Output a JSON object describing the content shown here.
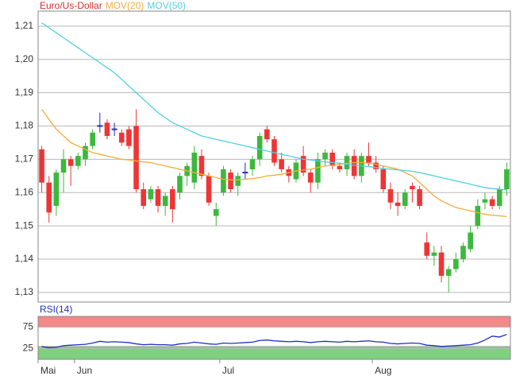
{
  "chart_data": [
    {
      "type": "candlestick",
      "categories": [
        "Mai",
        null,
        null,
        null,
        null,
        "Jun",
        null,
        null,
        null,
        null,
        null,
        null,
        null,
        null,
        null,
        null,
        null,
        null,
        null,
        null,
        null,
        null,
        null,
        null,
        null,
        "Jul",
        null,
        null,
        null,
        null,
        null,
        null,
        null,
        null,
        null,
        null,
        null,
        null,
        null,
        null,
        null,
        null,
        null,
        null,
        null,
        null,
        "Aug",
        null,
        null,
        null,
        null,
        null,
        null,
        null,
        null,
        null,
        null,
        null,
        null,
        null,
        null,
        null,
        null,
        null,
        null
      ],
      "series": [
        {
          "name": "Euro/Us-Dollar",
          "color": "#d03030",
          "up_color": "#3cb83c",
          "down_color": "#ee3535",
          "doji_color": "#2030c0",
          "open": [
            1.173,
            1.163,
            1.156,
            1.166,
            1.17,
            1.168,
            1.17,
            1.174,
            1.18,
            1.181,
            1.179,
            1.178,
            1.179,
            1.18,
            1.161,
            1.158,
            1.161,
            1.156,
            1.161,
            1.16,
            1.165,
            1.163,
            1.171,
            1.165,
            1.153,
            1.16,
            1.166,
            1.162,
            1.166,
            1.167,
            1.17,
            1.179,
            1.176,
            1.17,
            1.167,
            1.164,
            1.171,
            1.166,
            1.163,
            1.17,
            1.172,
            1.168,
            1.167,
            1.171,
            1.165,
            1.171,
            1.169,
            1.167,
            1.161,
            1.157,
            1.156,
            1.162,
            1.161,
            1.145,
            1.141,
            1.142,
            1.135,
            1.137,
            1.14,
            1.143,
            1.15,
            1.157,
            1.158,
            1.156,
            1.161
          ],
          "high": [
            1.174,
            1.165,
            1.167,
            1.173,
            1.171,
            1.172,
            1.175,
            1.179,
            1.184,
            1.182,
            1.181,
            1.179,
            1.18,
            1.185,
            1.163,
            1.162,
            1.162,
            1.16,
            1.162,
            1.166,
            1.169,
            1.174,
            1.173,
            1.166,
            1.157,
            1.168,
            1.167,
            1.166,
            1.169,
            1.171,
            1.178,
            1.18,
            1.177,
            1.172,
            1.168,
            1.17,
            1.174,
            1.167,
            1.172,
            1.173,
            1.173,
            1.169,
            1.172,
            1.173,
            1.172,
            1.175,
            1.171,
            1.168,
            1.163,
            1.16,
            1.161,
            1.163,
            1.162,
            1.148,
            1.144,
            1.144,
            1.138,
            1.142,
            1.145,
            1.15,
            1.158,
            1.16,
            1.159,
            1.162,
            1.169
          ],
          "low": [
            1.16,
            1.151,
            1.153,
            1.16,
            1.162,
            1.167,
            1.168,
            1.173,
            1.178,
            1.176,
            1.177,
            1.174,
            1.173,
            1.16,
            1.155,
            1.157,
            1.154,
            1.153,
            1.151,
            1.158,
            1.162,
            1.161,
            1.164,
            1.156,
            1.15,
            1.159,
            1.16,
            1.159,
            1.164,
            1.165,
            1.168,
            1.175,
            1.168,
            1.166,
            1.163,
            1.163,
            1.165,
            1.16,
            1.161,
            1.168,
            1.167,
            1.166,
            1.165,
            1.164,
            1.163,
            1.168,
            1.166,
            1.16,
            1.155,
            1.153,
            1.155,
            1.157,
            1.155,
            1.14,
            1.138,
            1.133,
            1.13,
            1.136,
            1.139,
            1.142,
            1.149,
            1.155,
            1.155,
            1.155,
            1.159
          ],
          "close": [
            1.163,
            1.154,
            1.166,
            1.17,
            1.168,
            1.171,
            1.174,
            1.178,
            1.18,
            1.177,
            1.179,
            1.175,
            1.174,
            1.161,
            1.156,
            1.161,
            1.156,
            1.159,
            1.155,
            1.165,
            1.168,
            1.172,
            1.165,
            1.157,
            1.155,
            1.167,
            1.161,
            1.165,
            1.166,
            1.17,
            1.177,
            1.176,
            1.169,
            1.167,
            1.165,
            1.169,
            1.166,
            1.163,
            1.17,
            1.172,
            1.168,
            1.167,
            1.171,
            1.165,
            1.171,
            1.169,
            1.167,
            1.161,
            1.157,
            1.156,
            1.16,
            1.161,
            1.156,
            1.141,
            1.142,
            1.135,
            1.137,
            1.14,
            1.144,
            1.148,
            1.156,
            1.158,
            1.156,
            1.161,
            1.167
          ]
        },
        {
          "name": "MOV(20)",
          "color": "#f5ac3a",
          "values": [
            1.185,
            1.182,
            1.179,
            1.177,
            1.175,
            1.174,
            1.173,
            1.172,
            1.1715,
            1.171,
            1.1705,
            1.17,
            1.1698,
            1.1695,
            1.1692,
            1.169,
            1.1685,
            1.168,
            1.1675,
            1.167,
            1.1665,
            1.166,
            1.1655,
            1.165,
            1.1645,
            1.164,
            1.1638,
            1.1638,
            1.164,
            1.1642,
            1.1645,
            1.165,
            1.1652,
            1.1655,
            1.166,
            1.1665,
            1.1668,
            1.167,
            1.1675,
            1.168,
            1.1682,
            1.1685,
            1.1688,
            1.169,
            1.169,
            1.1688,
            1.1685,
            1.168,
            1.1675,
            1.167,
            1.166,
            1.165,
            1.163,
            1.161,
            1.159,
            1.1575,
            1.1565,
            1.1555,
            1.155,
            1.1545,
            1.154,
            1.1535,
            1.1532,
            1.153,
            1.1528
          ]
        },
        {
          "name": "MOV(50)",
          "color": "#50d0e4",
          "values": [
            1.211,
            1.2095,
            1.208,
            1.2065,
            1.205,
            1.2035,
            1.202,
            1.2005,
            1.199,
            1.1975,
            1.196,
            1.194,
            1.192,
            1.19,
            1.188,
            1.186,
            1.184,
            1.1825,
            1.181,
            1.18,
            1.179,
            1.178,
            1.177,
            1.1765,
            1.176,
            1.1755,
            1.175,
            1.1745,
            1.174,
            1.1735,
            1.173,
            1.1725,
            1.172,
            1.1715,
            1.171,
            1.1705,
            1.17,
            1.1698,
            1.1695,
            1.1692,
            1.169,
            1.1688,
            1.1685,
            1.1682,
            1.168,
            1.1678,
            1.1675,
            1.1672,
            1.167,
            1.1668,
            1.1666,
            1.1664,
            1.166,
            1.1655,
            1.165,
            1.1645,
            1.164,
            1.1635,
            1.163,
            1.1625,
            1.162,
            1.1615,
            1.1612,
            1.161,
            1.1608
          ]
        }
      ],
      "ylim": [
        1.1271,
        1.2145
      ],
      "yticks": [
        {
          "value": 1.13,
          "label": "1,13"
        },
        {
          "value": 1.14,
          "label": "1,14"
        },
        {
          "value": 1.15,
          "label": "1,15"
        },
        {
          "value": 1.16,
          "label": "1,16"
        },
        {
          "value": 1.17,
          "label": "1,17"
        },
        {
          "value": 1.18,
          "label": "1,18"
        },
        {
          "value": 1.19,
          "label": "1,19"
        },
        {
          "value": 1.2,
          "label": "1,20"
        },
        {
          "value": 1.21,
          "label": "1,21"
        }
      ],
      "grid": true
    },
    {
      "type": "line",
      "title": "RSI(14)",
      "series": [
        {
          "color": "#2030c0",
          "values": [
            30,
            27,
            28,
            32,
            33,
            34,
            35,
            38,
            42,
            40,
            41,
            40,
            39,
            36,
            34,
            35,
            34,
            34,
            33,
            36,
            37,
            40,
            38,
            36,
            35,
            38,
            37,
            38,
            39,
            40,
            44,
            45,
            43,
            42,
            41,
            42,
            41,
            39,
            41,
            42,
            41,
            40,
            42,
            41,
            42,
            43,
            41,
            40,
            37,
            36,
            37,
            38,
            37,
            33,
            32,
            30,
            31,
            32,
            33,
            34,
            38,
            45,
            54,
            52,
            58
          ]
        }
      ],
      "bands": [
        {
          "from": 75,
          "to": 100,
          "color": "#f28888"
        },
        {
          "from": 0,
          "to": 30,
          "color": "#7fd07f"
        }
      ],
      "ylim": [
        0,
        100
      ],
      "yticks": [
        25,
        75
      ],
      "grid": true
    }
  ]
}
